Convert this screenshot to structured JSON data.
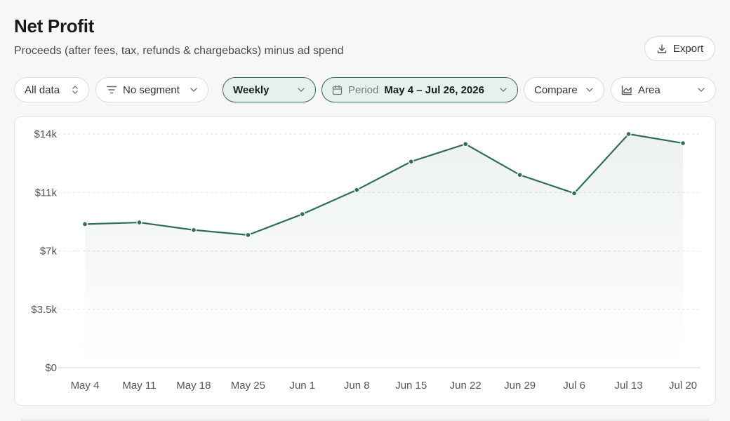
{
  "header": {
    "title": "Net Profit",
    "subtitle": "Proceeds (after fees, tax, refunds & chargebacks) minus ad spend",
    "export_label": "Export"
  },
  "filters": {
    "scope": "All data",
    "segment": "No segment",
    "granularity": "Weekly",
    "period_label": "Period",
    "period_value": "May 4 – Jul 26, 2026",
    "compare": "Compare",
    "chart_type": "Area"
  },
  "colors": {
    "line": "#2f6b5e",
    "accent_bg": "#e6f0ec"
  },
  "chart_data": {
    "type": "area",
    "title": "Net Profit",
    "categories": [
      "May 4",
      "May 11",
      "May 18",
      "May 25",
      "Jun 1",
      "Jun 8",
      "Jun 15",
      "Jun 22",
      "Jun 29",
      "Jul 6",
      "Jul 13",
      "Jul 20"
    ],
    "series": [
      {
        "values": [
          8600,
          8700,
          8250,
          7950,
          9200,
          10650,
          12350,
          13400,
          11550,
          10450,
          14000,
          13450
        ]
      }
    ],
    "y_ticks": [
      "$0",
      "$3.5k",
      "$7k",
      "$11k",
      "$14k"
    ],
    "y_tick_values": [
      0,
      3500,
      7000,
      10500,
      14000
    ],
    "ylim": [
      0,
      14000
    ],
    "grid": "horizontal dashed",
    "legend": "none"
  }
}
